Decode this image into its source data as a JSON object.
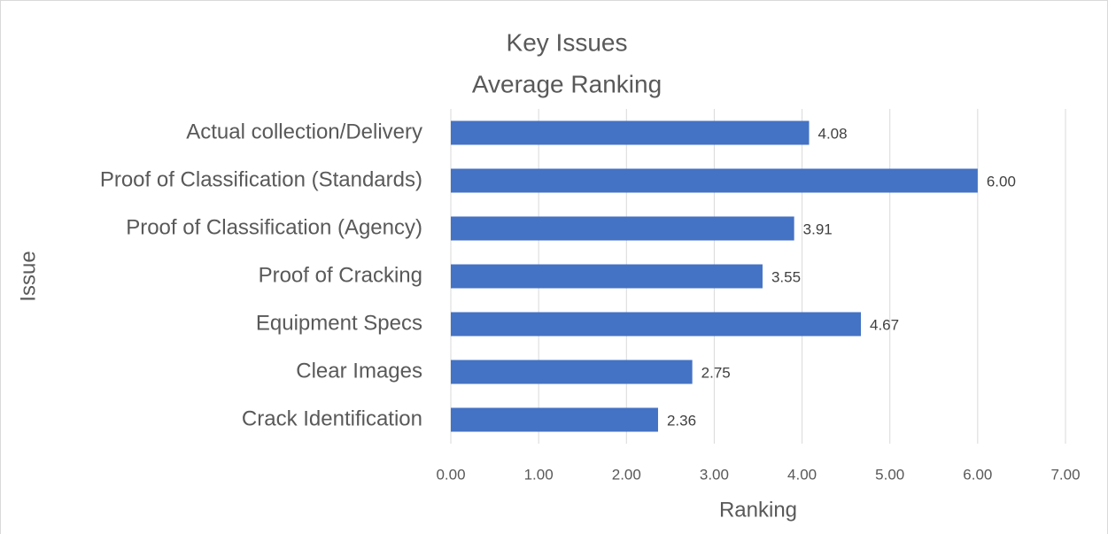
{
  "chart_data": {
    "type": "bar",
    "orientation": "horizontal",
    "title": "Key Issues",
    "subtitle": "Average Ranking",
    "x_label": "Ranking",
    "y_label": "Issue",
    "categories": [
      "Actual collection/Delivery",
      "Proof of Classification (Standards)",
      "Proof of Classification (Agency)",
      "Proof of Cracking",
      "Equipment  Specs",
      "Clear Images",
      "Crack Identification"
    ],
    "values": [
      4.08,
      6.0,
      3.91,
      3.55,
      4.67,
      2.75,
      2.36
    ],
    "value_labels": [
      "4.08",
      "6.00",
      "3.91",
      "3.55",
      "4.67",
      "2.75",
      "2.36"
    ],
    "color": "#4472c4",
    "xlim": [
      0,
      7
    ],
    "xticks": [
      {
        "value": 0,
        "label": "0.00"
      },
      {
        "value": 1,
        "label": "1.00"
      },
      {
        "value": 2,
        "label": "2.00"
      },
      {
        "value": 3,
        "label": "3.00"
      },
      {
        "value": 4,
        "label": "4.00"
      },
      {
        "value": 5,
        "label": "5.00"
      },
      {
        "value": 6,
        "label": "6.00"
      },
      {
        "value": 7,
        "label": "7.00"
      }
    ],
    "grid": true
  }
}
